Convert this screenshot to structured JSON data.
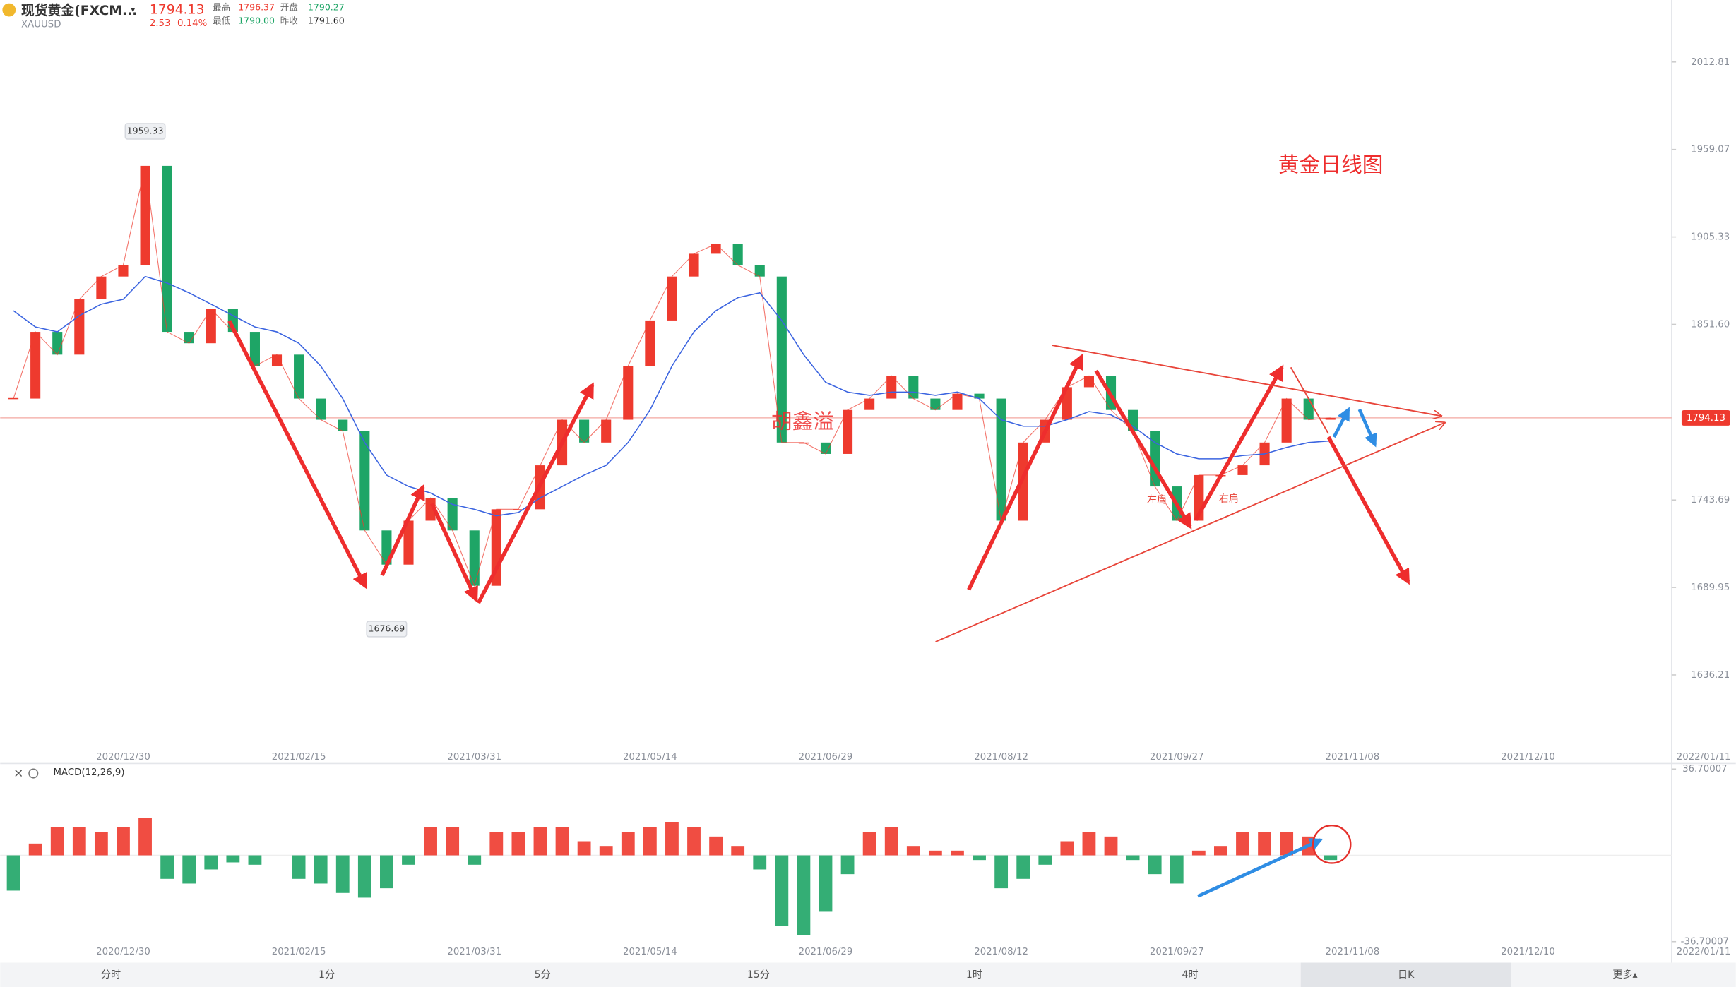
{
  "header": {
    "name": "现货黄金(FXCM...",
    "symbol": "XAUUSD",
    "price": "1794.13",
    "change": "2.53",
    "change_pct": "0.14%",
    "stats": [
      {
        "label": "最高",
        "value": "1796.37"
      },
      {
        "label": "开盘",
        "value": "1790.27"
      },
      {
        "label": "最低",
        "value": "1790.00"
      },
      {
        "label": "昨收",
        "value": "1791.60"
      }
    ]
  },
  "toolbar": {
    "tabs": [
      "分时",
      "1分",
      "5分",
      "15分",
      "1时",
      "4时",
      "日K",
      "更多▴"
    ]
  },
  "chart_data": [
    {
      "type": "candlestick",
      "title": "黄金日线图",
      "author": "胡鑫溢",
      "left_shoulder": "左肩",
      "right_shoulder": "右肩",
      "peak": 1959.33,
      "trough": 1676.69,
      "current": 1794.13,
      "up_color": "#ee3a2e",
      "down_color": "#1ea566",
      "categories": [
        null,
        null,
        null,
        null,
        null,
        "2020/12/30",
        null,
        null,
        null,
        null,
        null,
        null,
        null,
        "2021/02/15",
        null,
        null,
        null,
        null,
        null,
        null,
        null,
        "2021/03/31",
        null,
        null,
        null,
        null,
        null,
        null,
        null,
        "2021/05/14",
        null,
        null,
        null,
        null,
        null,
        null,
        null,
        "2021/06/29",
        null,
        null,
        null,
        null,
        null,
        null,
        null,
        "2021/08/12",
        null,
        null,
        null,
        null,
        null,
        null,
        null,
        "2021/09/27",
        null,
        null,
        null,
        null,
        null,
        null,
        null,
        "2021/11/08",
        null,
        null,
        null,
        null,
        null,
        null,
        null,
        "2021/12/10",
        null,
        null,
        null,
        null,
        null,
        null,
        null,
        "2022/01/11"
      ],
      "series": [
        {
          "color": "#ee3a2e",
          "values": [
            1806,
            1847,
            1833,
            1867,
            1881,
            1888,
            1949,
            1847,
            1840,
            1861,
            1847,
            1826,
            1833,
            1806,
            1793,
            1786,
            1725,
            1704,
            1731,
            1745,
            1725,
            1691,
            1738,
            1738,
            1765,
            1793,
            1779,
            1793,
            1826,
            1854,
            1881,
            1895,
            1901,
            1888,
            1881,
            1779,
            1779,
            1772,
            1799,
            1806,
            1820,
            1806,
            1799,
            1809,
            1806,
            1731,
            1779,
            1793,
            1813,
            1820,
            1799,
            1786,
            1752,
            1731,
            1759,
            1759,
            1765,
            1779,
            1806,
            1793,
            1794.13,
            null,
            null,
            null,
            null,
            null,
            null,
            null,
            null,
            null,
            null,
            null,
            null,
            null,
            null,
            null,
            null,
            null
          ]
        },
        {
          "color": "#3b64e0",
          "values": [
            1860,
            1850,
            1847,
            1857,
            1864,
            1867,
            1881,
            1877,
            1871,
            1864,
            1857,
            1850,
            1847,
            1840,
            1826,
            1806,
            1779,
            1759,
            1752,
            1748,
            1741,
            1738,
            1734,
            1736,
            1745,
            1752,
            1759,
            1765,
            1779,
            1799,
            1826,
            1847,
            1860,
            1868,
            1871,
            1854,
            1833,
            1816,
            1810,
            1808,
            1810,
            1810,
            1808,
            1810,
            1806,
            1793,
            1789,
            1789,
            1793,
            1798,
            1796,
            1789,
            1779,
            1772,
            1769,
            1769,
            1771,
            1772,
            1776,
            1779,
            1780,
            null,
            null,
            null,
            null,
            null,
            null,
            null,
            null,
            null,
            null,
            null,
            null,
            null,
            null,
            null,
            null,
            null
          ]
        }
      ],
      "ylim": [
        1598.8,
        2050.9
      ],
      "yticks": [
        1636.21,
        1689.95,
        1743.69,
        {
          "value": 1851.6,
          "label": "1851.60"
        },
        1905.33,
        1959.07,
        2012.81
      ]
    },
    {
      "type": "bar",
      "title": "MACD(12,26,9)",
      "up_color": "#ee3a2e",
      "down_color": "#1ea566",
      "categories": [
        null,
        null,
        null,
        null,
        null,
        "2020/12/30",
        null,
        null,
        null,
        null,
        null,
        null,
        null,
        "2021/02/15",
        null,
        null,
        null,
        null,
        null,
        null,
        null,
        "2021/03/31",
        null,
        null,
        null,
        null,
        null,
        null,
        null,
        "2021/05/14",
        null,
        null,
        null,
        null,
        null,
        null,
        null,
        "2021/06/29",
        null,
        null,
        null,
        null,
        null,
        null,
        null,
        "2021/08/12",
        null,
        null,
        null,
        null,
        null,
        null,
        null,
        "2021/09/27",
        null,
        null,
        null,
        null,
        null,
        null,
        null,
        "2021/11/08",
        null,
        null,
        null,
        null,
        null,
        null,
        null,
        "2021/12/10",
        null,
        null,
        null,
        null,
        null,
        null,
        null,
        "2022/01/11"
      ],
      "values": [
        -15,
        5,
        12,
        12,
        10,
        12,
        16,
        -10,
        -12,
        -6,
        -3,
        -4,
        0,
        -10,
        -12,
        -16,
        -18,
        -14,
        -4,
        12,
        12,
        -4,
        10,
        10,
        12,
        12,
        6,
        4,
        10,
        12,
        14,
        12,
        8,
        4,
        -6,
        -30,
        -34,
        -24,
        -8,
        10,
        12,
        4,
        2,
        2,
        -2,
        -14,
        -10,
        -4,
        6,
        10,
        8,
        -2,
        -8,
        -12,
        2,
        4,
        10,
        10,
        10,
        8,
        -2,
        null,
        null,
        null,
        null,
        null,
        null,
        null,
        null,
        null,
        null,
        null,
        null,
        null,
        null,
        null,
        null,
        null
      ],
      "ylim": [
        -36.70007,
        36.70007
      ],
      "yticks": [
        -36.70007,
        36.70007
      ]
    }
  ]
}
